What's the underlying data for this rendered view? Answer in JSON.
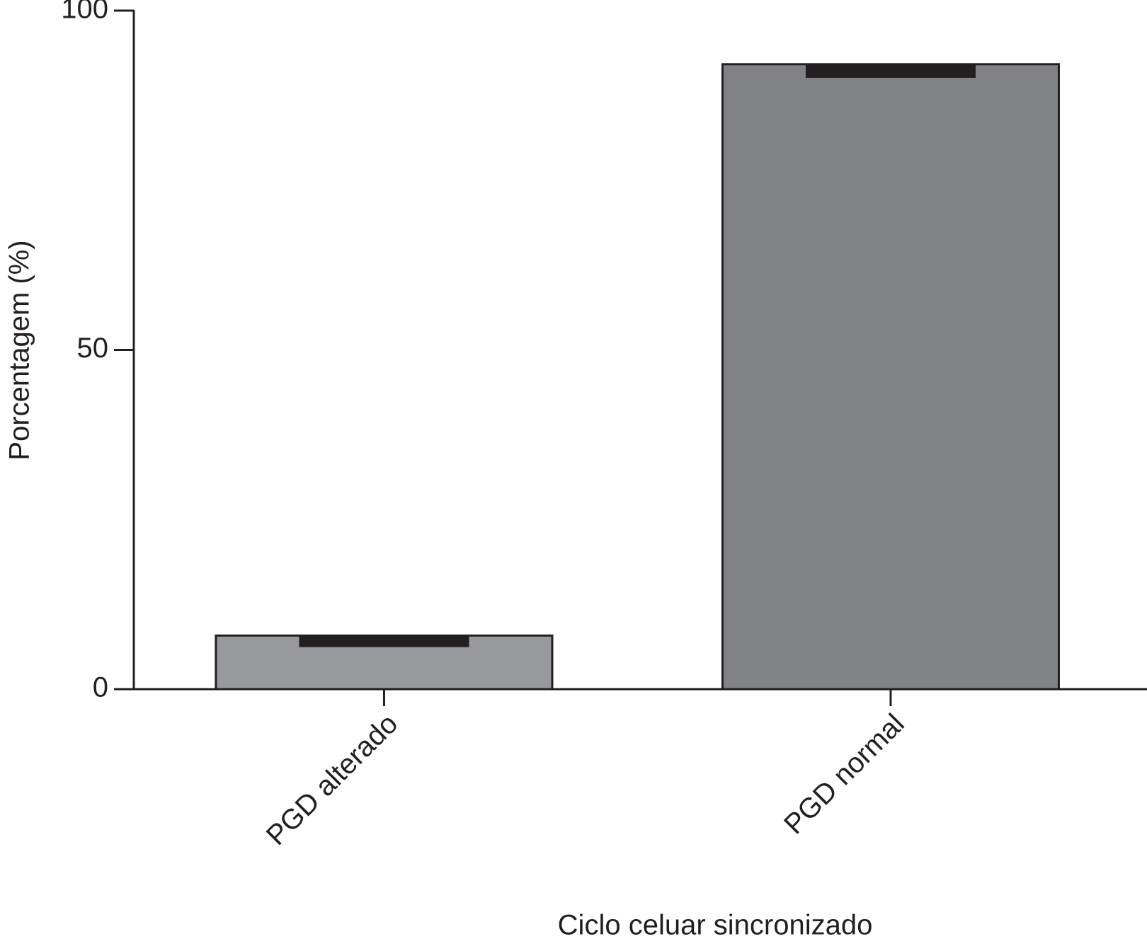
{
  "chart_data": {
    "type": "bar",
    "x_label": "Ciclo celuar sincronizado",
    "y_label": "Porcentagem (%)",
    "categories": [
      "PGD alterado",
      "PGD normal"
    ],
    "values": [
      7.9,
      92.1
    ],
    "errors": [
      1.7,
      2.0
    ],
    "colors": [
      "#98999c",
      "#818285"
    ],
    "error_color": "#231f20",
    "ylim": [
      0,
      100
    ],
    "yticks": [
      0,
      50,
      100
    ],
    "grid": false
  }
}
